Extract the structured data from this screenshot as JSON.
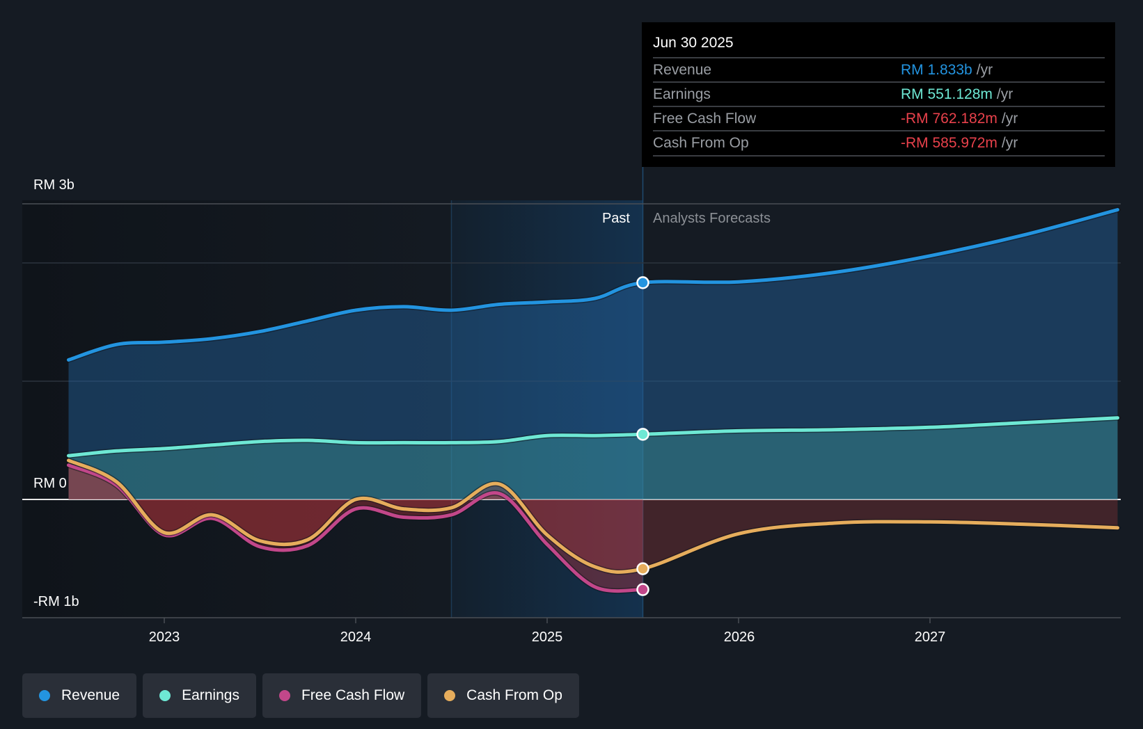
{
  "colors": {
    "revenue": "#2394e0",
    "earnings": "#6ee8d4",
    "free_cash_flow": "#c2478a",
    "cash_from_op": "#e6ad5c",
    "negative_value": "#e8414b",
    "background": "#151b23"
  },
  "tooltip": {
    "date": "Jun 30 2025",
    "rows": [
      {
        "label": "Revenue",
        "value": "RM 1.833b",
        "unit": "/yr",
        "color": "#2394e0"
      },
      {
        "label": "Earnings",
        "value": "RM 551.128m",
        "unit": "/yr",
        "color": "#6ee8d4"
      },
      {
        "label": "Free Cash Flow",
        "value": "-RM 762.182m",
        "unit": "/yr",
        "color": "#e8414b"
      },
      {
        "label": "Cash From Op",
        "value": "-RM 585.972m",
        "unit": "/yr",
        "color": "#e8414b"
      }
    ]
  },
  "legend": [
    {
      "label": "Revenue",
      "color": "#2394e0"
    },
    {
      "label": "Earnings",
      "color": "#6ee8d4"
    },
    {
      "label": "Free Cash Flow",
      "color": "#c2478a"
    },
    {
      "label": "Cash From Op",
      "color": "#e6ad5c"
    }
  ],
  "chart_data": {
    "type": "area",
    "title": "",
    "xlabel": "",
    "ylabel": "",
    "units": "RM billions",
    "y_tick_labels": [
      {
        "value": 2.5,
        "label": "RM 3b"
      },
      {
        "value": 0,
        "label": "RM 0"
      },
      {
        "value": -1,
        "label": "-RM 1b"
      }
    ],
    "y_gridlines": [
      2.5,
      2,
      1,
      0,
      -1
    ],
    "ylim": [
      -1,
      2.5
    ],
    "xlim": [
      2022.25,
      2027.98
    ],
    "x_ticks": [
      {
        "value": 2023,
        "label": "2023"
      },
      {
        "value": 2024,
        "label": "2024"
      },
      {
        "value": 2025,
        "label": "2025"
      },
      {
        "value": 2026,
        "label": "2026"
      },
      {
        "value": 2027,
        "label": "2027"
      }
    ],
    "past_label": "Past",
    "forecast_label": "Analysts Forecasts",
    "past_end": 2025.5,
    "highlight_start": 2024.5,
    "series": [
      {
        "name": "Revenue",
        "key": "revenue",
        "x": [
          2022.5,
          2022.75,
          2023,
          2023.25,
          2023.5,
          2023.75,
          2024,
          2024.25,
          2024.5,
          2024.75,
          2025,
          2025.25,
          2025.5,
          2026,
          2026.5,
          2027,
          2027.5,
          2027.98
        ],
        "values": [
          1.18,
          1.31,
          1.33,
          1.36,
          1.42,
          1.51,
          1.6,
          1.63,
          1.6,
          1.65,
          1.67,
          1.7,
          1.833,
          1.84,
          1.92,
          2.06,
          2.24,
          2.45
        ]
      },
      {
        "name": "Earnings",
        "key": "earnings",
        "x": [
          2022.5,
          2022.75,
          2023,
          2023.25,
          2023.5,
          2023.75,
          2024,
          2024.25,
          2024.5,
          2024.75,
          2025,
          2025.25,
          2025.5,
          2026,
          2026.5,
          2027,
          2027.5,
          2027.98
        ],
        "values": [
          0.37,
          0.41,
          0.43,
          0.46,
          0.49,
          0.5,
          0.48,
          0.48,
          0.48,
          0.49,
          0.54,
          0.54,
          0.551,
          0.58,
          0.59,
          0.61,
          0.65,
          0.69
        ]
      },
      {
        "name": "Free Cash Flow",
        "key": "free_cash_flow",
        "x": [
          2022.5,
          2022.75,
          2023,
          2023.25,
          2023.5,
          2023.75,
          2024,
          2024.25,
          2024.5,
          2024.75,
          2025,
          2025.25,
          2025.5
        ],
        "values": [
          0.29,
          0.12,
          -0.3,
          -0.16,
          -0.4,
          -0.39,
          -0.08,
          -0.15,
          -0.13,
          0.05,
          -0.38,
          -0.74,
          -0.762
        ]
      },
      {
        "name": "Cash From Op",
        "key": "cash_from_op",
        "x": [
          2022.5,
          2022.75,
          2023,
          2023.25,
          2023.5,
          2023.75,
          2024,
          2024.25,
          2024.5,
          2024.75,
          2025,
          2025.25,
          2025.5,
          2026,
          2026.5,
          2027,
          2027.5,
          2027.98
        ],
        "values": [
          0.33,
          0.15,
          -0.28,
          -0.13,
          -0.35,
          -0.34,
          0.0,
          -0.08,
          -0.07,
          0.13,
          -0.3,
          -0.57,
          -0.586,
          -0.29,
          -0.2,
          -0.19,
          -0.21,
          -0.24
        ]
      }
    ],
    "legend_placement": "bottom-left",
    "grid": true
  }
}
